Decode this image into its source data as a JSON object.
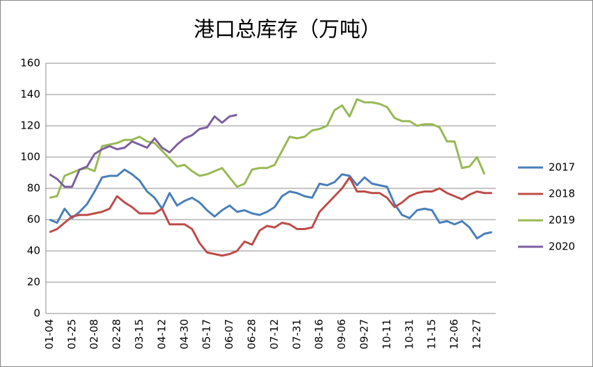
{
  "chart_data": {
    "type": "line",
    "title": "港口总库存（万吨）",
    "categories": [
      "01-04",
      null,
      null,
      "01-25",
      null,
      null,
      "02-08",
      null,
      null,
      "02-28",
      null,
      null,
      "03-15",
      null,
      null,
      "04-12",
      null,
      null,
      "04-30",
      null,
      null,
      "05-17",
      null,
      null,
      "06-07",
      null,
      null,
      "06-28",
      null,
      null,
      "07-12",
      null,
      null,
      "07-31",
      null,
      null,
      "08-16",
      null,
      null,
      "09-06",
      null,
      null,
      "09-27",
      null,
      null,
      "10-11",
      null,
      null,
      "10-31",
      null,
      null,
      "11-15",
      null,
      null,
      "12-06",
      null,
      null,
      "12-27",
      null,
      null
    ],
    "series": [
      {
        "name": "2017",
        "color": "#4a7ebb",
        "values": [
          60,
          58,
          67,
          61,
          65,
          70,
          78,
          87,
          88,
          88,
          92,
          89,
          85,
          78,
          74,
          67,
          77,
          69,
          72,
          74,
          71,
          66,
          62,
          66,
          69,
          65,
          66,
          64,
          63,
          65,
          68,
          75,
          78,
          77,
          75,
          74,
          83,
          82,
          84,
          89,
          88,
          82,
          87,
          83,
          82,
          81,
          70,
          63,
          61,
          66,
          67,
          66,
          58,
          59,
          57,
          59,
          55,
          48,
          51,
          52
        ]
      },
      {
        "name": "2018",
        "color": "#be4b48",
        "values": [
          52,
          54,
          58,
          62,
          63,
          63,
          64,
          65,
          67,
          75,
          71,
          68,
          64,
          64,
          64,
          67,
          57,
          57,
          57,
          54,
          45,
          39,
          38,
          37,
          38,
          40,
          46,
          44,
          53,
          56,
          55,
          58,
          57,
          54,
          54,
          55,
          65,
          70,
          75,
          80,
          87,
          78,
          78,
          77,
          77,
          74,
          68,
          71,
          75,
          77,
          78,
          78,
          80,
          77,
          75,
          73,
          76,
          78,
          77,
          77
        ]
      },
      {
        "name": "2019",
        "color": "#98b954",
        "values": [
          74,
          75,
          88,
          90,
          92,
          93,
          91,
          107,
          108,
          109,
          111,
          111,
          113,
          110,
          109,
          104,
          99,
          94,
          95,
          91,
          88,
          89,
          91,
          93,
          87,
          81,
          83,
          92,
          93,
          93,
          95,
          104,
          113,
          112,
          113,
          117,
          118,
          120,
          130,
          133,
          126,
          137,
          135,
          135,
          134,
          132,
          125,
          123,
          123,
          120,
          121,
          121,
          119,
          110,
          110,
          93,
          94,
          100,
          89,
          null
        ]
      },
      {
        "name": "2020",
        "color": "#7d5fa0",
        "values": [
          89,
          86,
          81,
          81,
          92,
          94,
          102,
          105,
          107,
          105,
          106,
          110,
          108,
          106,
          112,
          106,
          103,
          108,
          112,
          114,
          118,
          119,
          126,
          122,
          126,
          127,
          null,
          null,
          null,
          null,
          null,
          null,
          null,
          null,
          null,
          null,
          null,
          null,
          null,
          null,
          null,
          null,
          null,
          null,
          null,
          null,
          null,
          null,
          null,
          null,
          null,
          null,
          null,
          null,
          null,
          null,
          null,
          null,
          null,
          null
        ]
      }
    ],
    "ylim": [
      0,
      160
    ],
    "yticks": [
      0,
      20,
      40,
      60,
      80,
      100,
      120,
      140,
      160
    ],
    "grid": true,
    "legend": "right"
  }
}
